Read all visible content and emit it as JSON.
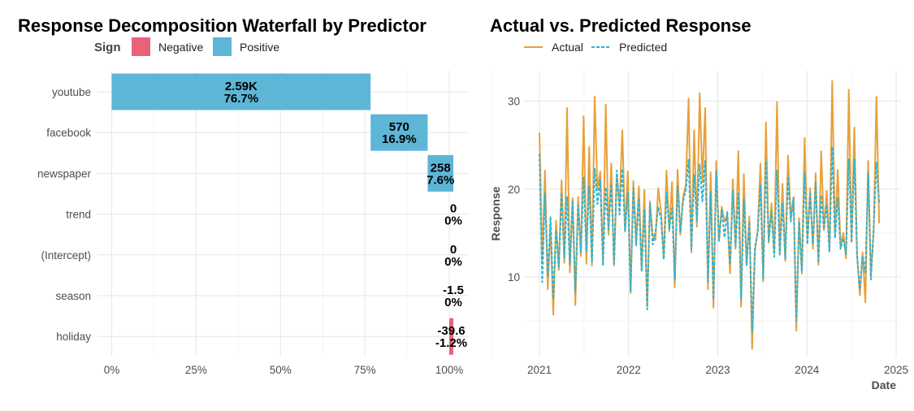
{
  "chart_data": [
    {
      "type": "bar",
      "orientation": "horizontal-waterfall",
      "title": "Response Decomposition Waterfall by Predictor",
      "legend": {
        "title": "Sign",
        "position": "top-left",
        "entries": [
          {
            "label": "Negative",
            "color": "#E8637A"
          },
          {
            "label": "Positive",
            "color": "#5EB6D6"
          }
        ]
      },
      "xlim": [
        0,
        1.0
      ],
      "x_ticks": [
        0,
        0.25,
        0.5,
        0.75,
        1.0
      ],
      "x_tick_labels": [
        "0%",
        "25%",
        "50%",
        "75%",
        "100%"
      ],
      "xlabel": "",
      "ylabel": "",
      "categories": [
        "youtube",
        "facebook",
        "newspaper",
        "trend",
        "(Intercept)",
        "season",
        "holiday"
      ],
      "bars": [
        {
          "name": "youtube",
          "start": 0.0,
          "end": 0.767,
          "sign": "Positive",
          "value_label": "2.59K",
          "pct_label": "76.7%"
        },
        {
          "name": "facebook",
          "start": 0.767,
          "end": 0.936,
          "sign": "Positive",
          "value_label": "570",
          "pct_label": "16.9%"
        },
        {
          "name": "newspaper",
          "start": 0.936,
          "end": 1.012,
          "sign": "Positive",
          "value_label": "258",
          "pct_label": "7.6%"
        },
        {
          "name": "trend",
          "start": 1.012,
          "end": 1.012,
          "sign": "Positive",
          "value_label": "0",
          "pct_label": "0%"
        },
        {
          "name": "(Intercept)",
          "start": 1.012,
          "end": 1.012,
          "sign": "Positive",
          "value_label": "0",
          "pct_label": "0%"
        },
        {
          "name": "season",
          "start": 1.012,
          "end": 1.012,
          "sign": "Negative",
          "value_label": "-1.5",
          "pct_label": "0%"
        },
        {
          "name": "holiday",
          "start": 1.012,
          "end": 1.0,
          "sign": "Negative",
          "value_label": "-39.6",
          "pct_label": "-1.2%"
        }
      ]
    },
    {
      "type": "line",
      "title": "Actual vs. Predicted Response",
      "xlabel": "Date",
      "ylabel": "Response",
      "xlim": [
        2021,
        2025
      ],
      "ylim": [
        2,
        33
      ],
      "x_ticks": [
        2021,
        2022,
        2023,
        2024,
        2025
      ],
      "x_tick_labels": [
        "2021",
        "2022",
        "2023",
        "2024",
        "2025"
      ],
      "y_ticks": [
        10,
        20,
        30
      ],
      "y_tick_labels": [
        "10",
        "20",
        "30"
      ],
      "grid": true,
      "legend": {
        "position": "top",
        "entries": [
          {
            "label": "Actual",
            "color": "#E8A03A",
            "style": "solid"
          },
          {
            "label": "Predicted",
            "color": "#29B3D6",
            "style": "dashed"
          }
        ]
      },
      "x_start": 2021.0,
      "x_end": 2024.81,
      "series": [
        {
          "name": "Actual",
          "values": [
            26.4,
            11.9,
            22.1,
            8.6,
            15.9,
            5.7,
            16.4,
            10.8,
            21.0,
            11.6,
            29.2,
            10.5,
            19.0,
            6.8,
            19.1,
            12.4,
            28.3,
            11.5,
            24.8,
            11.3,
            30.5,
            19.9,
            22.0,
            11.8,
            29.6,
            14.8,
            22.9,
            11.3,
            21.6,
            18.3,
            26.7,
            15.2,
            22.0,
            8.2,
            20.9,
            14.0,
            20.3,
            10.9,
            19.9,
            6.6,
            18.6,
            14.7,
            14.2,
            20.1,
            17.5,
            12.1,
            22.1,
            15.2,
            20.8,
            8.8,
            22.2,
            14.8,
            19.1,
            20.5,
            30.3,
            12.8,
            26.7,
            15.7,
            30.9,
            20.8,
            29.2,
            8.6,
            21.9,
            6.5,
            23.2,
            14.1,
            18.0,
            16.3,
            17.1,
            10.4,
            21.1,
            13.2,
            24.3,
            6.6,
            21.7,
            11.3,
            16.9,
            1.8,
            12.9,
            15.2,
            22.9,
            9.5,
            27.6,
            13.9,
            18.4,
            12.7,
            29.9,
            12.5,
            20.6,
            11.8,
            23.8,
            16.8,
            19.1,
            3.9,
            16.7,
            10.4,
            25.8,
            14.2,
            20.1,
            13.2,
            21.8,
            11.4,
            24.3,
            15.3,
            19.8,
            12.9,
            32.3,
            14.9,
            22.2,
            13.5,
            15.0,
            12.1,
            31.3,
            14.0,
            27.0,
            12.4,
            7.9,
            12.8,
            7.1,
            23.2,
            10.2,
            15.1,
            30.5,
            16.1
          ]
        },
        {
          "name": "Predicted",
          "values": [
            24.0,
            9.4,
            19.5,
            10.0,
            16.8,
            7.5,
            15.3,
            11.1,
            19.6,
            12.2,
            19.1,
            11.4,
            18.7,
            8.3,
            18.2,
            12.8,
            21.3,
            12.9,
            20.3,
            11.6,
            22.3,
            18.3,
            21.0,
            11.3,
            20.2,
            15.4,
            20.6,
            11.5,
            22.1,
            17.1,
            22.3,
            15.2,
            19.6,
            8.3,
            20.1,
            13.6,
            19.0,
            10.6,
            17.7,
            6.3,
            18.3,
            13.7,
            15.2,
            17.9,
            16.7,
            12.0,
            19.6,
            15.4,
            17.8,
            9.7,
            20.3,
            15.1,
            18.6,
            19.9,
            23.4,
            13.1,
            21.6,
            16.4,
            22.8,
            18.6,
            23.2,
            9.5,
            19.7,
            7.4,
            22.0,
            14.1,
            17.7,
            14.5,
            17.4,
            11.4,
            19.8,
            13.5,
            19.5,
            7.4,
            18.8,
            11.4,
            16.3,
            3.8,
            13.3,
            15.1,
            20.4,
            9.8,
            23.2,
            14.1,
            17.4,
            12.3,
            22.1,
            12.6,
            18.4,
            12.1,
            21.4,
            16.3,
            19.0,
            5.0,
            16.3,
            10.6,
            21.8,
            13.7,
            19.5,
            13.7,
            20.7,
            11.6,
            19.3,
            15.4,
            18.2,
            12.9,
            24.8,
            14.4,
            19.0,
            13.2,
            14.4,
            12.6,
            23.4,
            14.1,
            23.4,
            12.5,
            8.6,
            12.4,
            10.5,
            21.8,
            9.7,
            15.6,
            23.0,
            18.3
          ]
        }
      ]
    }
  ]
}
